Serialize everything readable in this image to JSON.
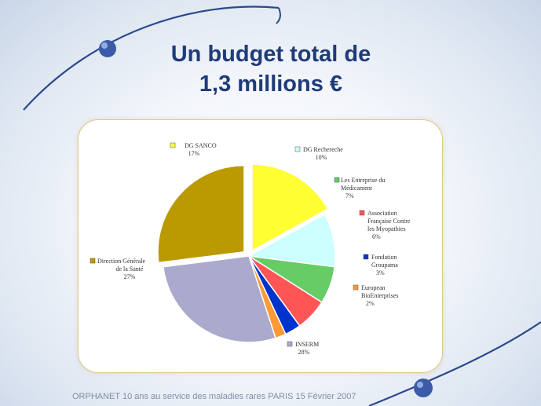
{
  "slide": {
    "title_line1": "Un budget total de",
    "title_line2": "1,3 millions €",
    "footer": "ORPHANET 10 ans au service des maladies rares PARIS 15 Février 2007"
  },
  "chart_data": {
    "type": "pie",
    "title": "",
    "slices": [
      {
        "label_lines": [
          "DG SANCO"
        ],
        "pct_label": "17%",
        "value": 17,
        "color": "#ffff33"
      },
      {
        "label_lines": [
          "DG Rechereche"
        ],
        "pct_label": "10%",
        "value": 10,
        "color": "#ccffff"
      },
      {
        "label_lines": [
          "Les Entreprise du",
          "Médicament"
        ],
        "pct_label": "7%",
        "value": 7,
        "color": "#66cc66"
      },
      {
        "label_lines": [
          "Association",
          "Française Contre",
          "les Myopathies"
        ],
        "pct_label": "6%",
        "value": 6,
        "color": "#ff5555"
      },
      {
        "label_lines": [
          "Fondation",
          "Groupama"
        ],
        "pct_label": "3%",
        "value": 3,
        "color": "#0033cc"
      },
      {
        "label_lines": [
          "European",
          "BioEnterprises"
        ],
        "pct_label": "2%",
        "value": 2,
        "color": "#ff9933"
      },
      {
        "label_lines": [
          "INSERM"
        ],
        "pct_label": "28%",
        "value": 28,
        "color": "#aaaacc"
      },
      {
        "label_lines": [
          "Direction Générale",
          "de la Santé"
        ],
        "pct_label": "27%",
        "value": 27,
        "color": "#bb9900"
      }
    ]
  }
}
